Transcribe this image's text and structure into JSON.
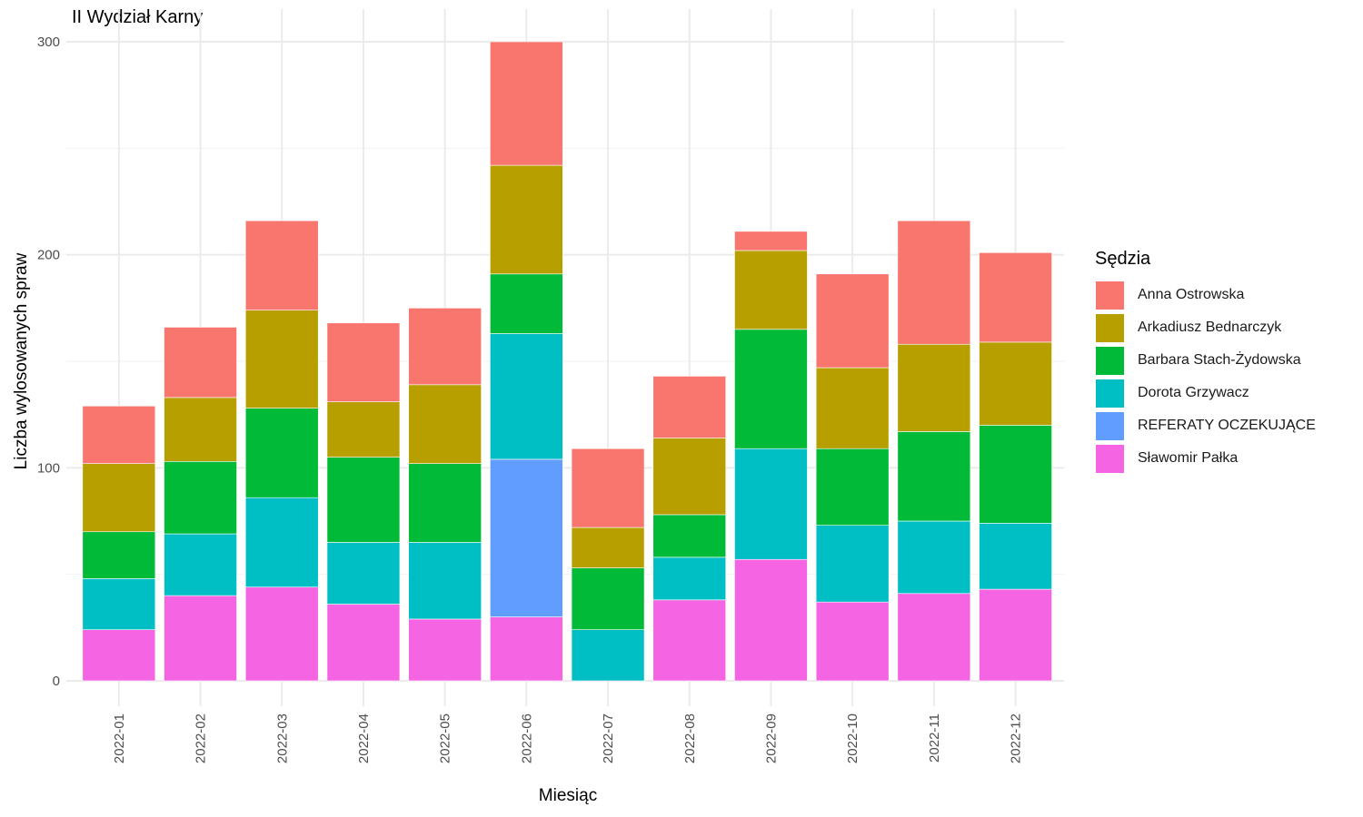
{
  "chart_data": {
    "type": "bar",
    "stacked": true,
    "title": "II Wydział Karny",
    "xlabel": "Miesiąc",
    "ylabel": "Liczba wylosowanych spraw",
    "ylim": [
      -12,
      300
    ],
    "yticks": [
      0,
      100,
      200,
      300
    ],
    "grid": true,
    "legend": {
      "title": "Sędzia",
      "placement": "right"
    },
    "categories": [
      "2022-01",
      "2022-02",
      "2022-03",
      "2022-04",
      "2022-05",
      "2022-06",
      "2022-07",
      "2022-08",
      "2022-09",
      "2022-10",
      "2022-11",
      "2022-12"
    ],
    "series": [
      {
        "name": "Sławomir Pałka",
        "color": "#F564E3",
        "values": [
          24,
          40,
          44,
          36,
          29,
          30,
          0,
          38,
          57,
          37,
          41,
          43
        ]
      },
      {
        "name": "REFERATY OCZEKUJĄCE",
        "color": "#619CFF",
        "values": [
          0,
          0,
          0,
          0,
          0,
          74,
          0,
          0,
          0,
          0,
          0,
          0
        ]
      },
      {
        "name": "Dorota Grzywacz",
        "color": "#00BFC4",
        "values": [
          24,
          29,
          42,
          29,
          36,
          59,
          24,
          20,
          52,
          36,
          34,
          31
        ]
      },
      {
        "name": "Barbara Stach-Żydowska",
        "color": "#00BA38",
        "values": [
          22,
          34,
          42,
          40,
          37,
          28,
          29,
          20,
          56,
          36,
          42,
          46
        ]
      },
      {
        "name": "Arkadiusz Bednarczyk",
        "color": "#B79F00",
        "values": [
          32,
          30,
          46,
          26,
          37,
          51,
          19,
          36,
          37,
          38,
          41,
          39
        ]
      },
      {
        "name": "Anna Ostrowska",
        "color": "#F8766D",
        "values": [
          27,
          33,
          42,
          37,
          36,
          58,
          37,
          29,
          9,
          44,
          58,
          42
        ]
      }
    ]
  },
  "legend_items": [
    {
      "name": "Anna Ostrowska",
      "color": "#F8766D"
    },
    {
      "name": "Arkadiusz Bednarczyk",
      "color": "#B79F00"
    },
    {
      "name": "Barbara Stach-Żydowska",
      "color": "#00BA38"
    },
    {
      "name": "Dorota Grzywacz",
      "color": "#00BFC4"
    },
    {
      "name": "REFERATY OCZEKUJĄCE",
      "color": "#619CFF"
    },
    {
      "name": "Sławomir Pałka",
      "color": "#F564E3"
    }
  ]
}
